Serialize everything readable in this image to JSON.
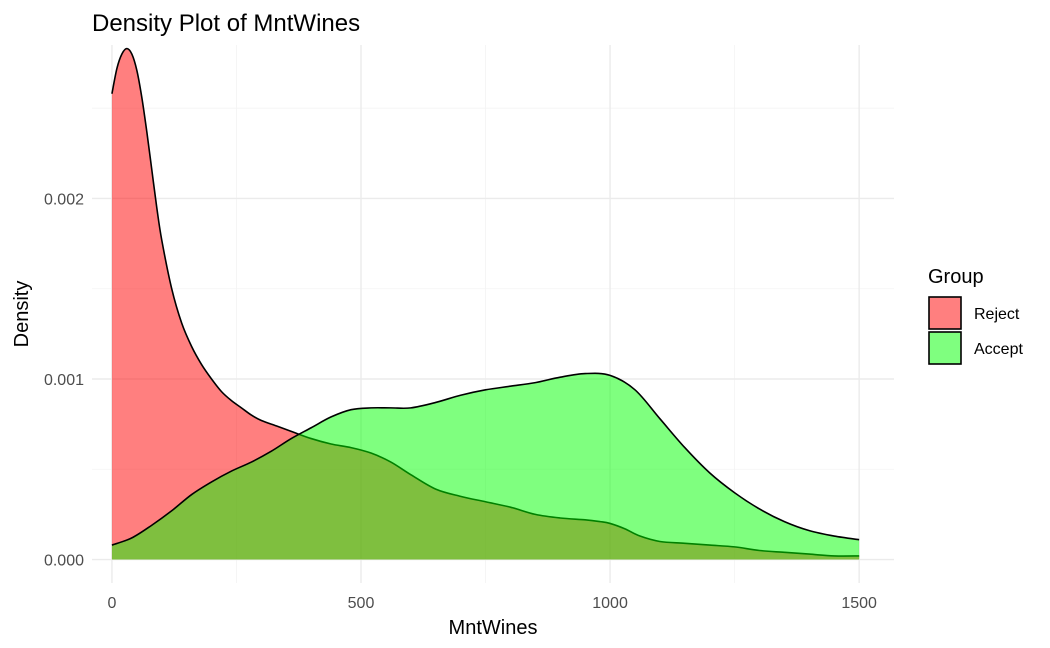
{
  "chart_data": {
    "type": "area",
    "title": "Density Plot of MntWines",
    "xlabel": "MntWines",
    "ylabel": "Density",
    "xlim": [
      -40,
      1570
    ],
    "ylim": [
      -0.00013,
      0.00285
    ],
    "x_ticks": [
      0,
      500,
      1000,
      1500
    ],
    "x_tick_labels": [
      "0",
      "500",
      "1000",
      "1500"
    ],
    "y_ticks": [
      0.0,
      0.001,
      0.002
    ],
    "y_tick_labels": [
      "0.000",
      "0.001",
      "0.002"
    ],
    "x_minor_ticks": [
      250,
      750,
      1250
    ],
    "y_minor_ticks": [
      0.0005,
      0.0015,
      0.0025
    ],
    "grid": true,
    "legend": {
      "title": "Group",
      "position": "right"
    },
    "series": [
      {
        "name": "Reject",
        "color": "#ff0000",
        "opacity": 0.5,
        "points": [
          [
            0,
            0.00258
          ],
          [
            10,
            0.00272
          ],
          [
            20,
            0.0028
          ],
          [
            30,
            0.00283
          ],
          [
            40,
            0.0028
          ],
          [
            50,
            0.00271
          ],
          [
            60,
            0.00256
          ],
          [
            70,
            0.00237
          ],
          [
            80,
            0.00216
          ],
          [
            90,
            0.00195
          ],
          [
            100,
            0.00177
          ],
          [
            120,
            0.0015
          ],
          [
            140,
            0.00131
          ],
          [
            160,
            0.00118
          ],
          [
            180,
            0.00108
          ],
          [
            200,
            0.001
          ],
          [
            220,
            0.00093
          ],
          [
            240,
            0.00088
          ],
          [
            260,
            0.00084
          ],
          [
            280,
            0.0008
          ],
          [
            300,
            0.00077
          ],
          [
            330,
            0.00074
          ],
          [
            360,
            0.00071
          ],
          [
            400,
            0.00067
          ],
          [
            440,
            0.00064
          ],
          [
            480,
            0.00062
          ],
          [
            520,
            0.00059
          ],
          [
            560,
            0.00054
          ],
          [
            600,
            0.00047
          ],
          [
            650,
            0.00039
          ],
          [
            700,
            0.00035
          ],
          [
            750,
            0.00032
          ],
          [
            800,
            0.00029
          ],
          [
            850,
            0.00025
          ],
          [
            900,
            0.00023
          ],
          [
            950,
            0.00022
          ],
          [
            980,
            0.00021
          ],
          [
            1000,
            0.0002
          ],
          [
            1030,
            0.00017
          ],
          [
            1060,
            0.00013
          ],
          [
            1100,
            0.0001
          ],
          [
            1150,
            9e-05
          ],
          [
            1200,
            8e-05
          ],
          [
            1250,
            7e-05
          ],
          [
            1300,
            5e-05
          ],
          [
            1350,
            4e-05
          ],
          [
            1400,
            3e-05
          ],
          [
            1450,
            2e-05
          ],
          [
            1500,
            2e-05
          ]
        ]
      },
      {
        "name": "Accept",
        "color": "#00ff00",
        "opacity": 0.5,
        "points": [
          [
            0,
            8e-05
          ],
          [
            40,
            0.00012
          ],
          [
            80,
            0.00019
          ],
          [
            120,
            0.00027
          ],
          [
            160,
            0.00036
          ],
          [
            200,
            0.00043
          ],
          [
            240,
            0.00049
          ],
          [
            280,
            0.00054
          ],
          [
            320,
            0.0006
          ],
          [
            360,
            0.00067
          ],
          [
            400,
            0.00073
          ],
          [
            440,
            0.00079
          ],
          [
            480,
            0.00083
          ],
          [
            520,
            0.00084
          ],
          [
            560,
            0.00084
          ],
          [
            600,
            0.00084
          ],
          [
            650,
            0.00087
          ],
          [
            700,
            0.00091
          ],
          [
            750,
            0.00094
          ],
          [
            800,
            0.00096
          ],
          [
            850,
            0.00098
          ],
          [
            900,
            0.00101
          ],
          [
            950,
            0.00103
          ],
          [
            1000,
            0.00102
          ],
          [
            1050,
            0.00094
          ],
          [
            1100,
            0.00078
          ],
          [
            1150,
            0.00062
          ],
          [
            1200,
            0.00048
          ],
          [
            1250,
            0.00037
          ],
          [
            1300,
            0.00028
          ],
          [
            1350,
            0.00021
          ],
          [
            1400,
            0.00016
          ],
          [
            1450,
            0.00013
          ],
          [
            1500,
            0.00011
          ]
        ]
      }
    ]
  }
}
